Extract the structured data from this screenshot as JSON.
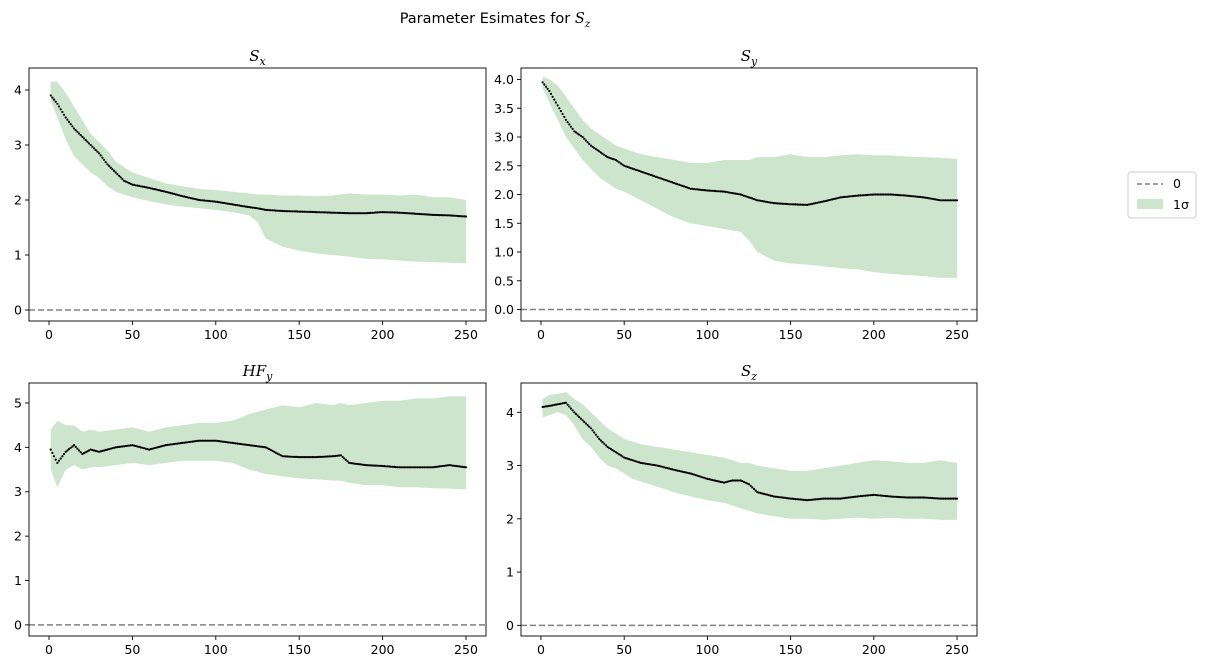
{
  "figure": {
    "suptitle_prefix": "Parameter Esimates for ",
    "suptitle_symbol": "S",
    "suptitle_sub": "z",
    "band_color": "#cde5cd",
    "dot_color": "#000000",
    "zero_line_color": "#808080"
  },
  "legend": {
    "items": [
      {
        "label": "0",
        "type": "dashed-line"
      },
      {
        "label": "1σ",
        "type": "patch"
      }
    ]
  },
  "chart_data": [
    {
      "type": "scatter",
      "title_symbol": "S",
      "title_sub": "x",
      "xlim": [
        -12,
        262
      ],
      "ylim": [
        -0.2,
        4.4
      ],
      "xticks": [
        0,
        50,
        100,
        150,
        200,
        250
      ],
      "xtick_labels": [
        "0",
        "50",
        "100",
        "150",
        "200",
        "250"
      ],
      "yticks": [
        0,
        1,
        2,
        3,
        4
      ],
      "ytick_labels": [
        "0",
        "1",
        "2",
        "3",
        "4"
      ],
      "zero_line": 0,
      "series": [
        {
          "x": [
            1,
            5,
            10,
            15,
            20,
            25,
            30,
            35,
            40,
            45,
            50,
            60,
            70,
            80,
            90,
            100,
            110,
            120,
            125,
            130,
            140,
            150,
            160,
            170,
            180,
            190,
            200,
            210,
            220,
            230,
            240,
            250
          ],
          "y": [
            3.9,
            3.75,
            3.5,
            3.3,
            3.15,
            3.0,
            2.85,
            2.65,
            2.5,
            2.35,
            2.28,
            2.22,
            2.15,
            2.07,
            2.0,
            1.97,
            1.92,
            1.87,
            1.85,
            1.82,
            1.8,
            1.79,
            1.78,
            1.77,
            1.76,
            1.76,
            1.78,
            1.77,
            1.75,
            1.73,
            1.72,
            1.7
          ],
          "lower": [
            3.8,
            3.5,
            3.1,
            2.8,
            2.65,
            2.5,
            2.4,
            2.25,
            2.15,
            2.1,
            2.05,
            1.98,
            1.92,
            1.88,
            1.85,
            1.82,
            1.78,
            1.72,
            1.6,
            1.3,
            1.15,
            1.08,
            1.03,
            1.0,
            0.97,
            0.93,
            0.92,
            0.9,
            0.88,
            0.87,
            0.86,
            0.85
          ],
          "upper": [
            4.15,
            4.15,
            3.95,
            3.7,
            3.45,
            3.2,
            3.05,
            2.9,
            2.7,
            2.6,
            2.5,
            2.4,
            2.3,
            2.25,
            2.2,
            2.18,
            2.15,
            2.12,
            2.1,
            2.1,
            2.08,
            2.08,
            2.07,
            2.08,
            2.12,
            2.1,
            2.1,
            2.08,
            2.1,
            2.05,
            2.05,
            2.0
          ]
        }
      ]
    },
    {
      "type": "scatter",
      "title_symbol": "S",
      "title_sub": "y",
      "xlim": [
        -12,
        262
      ],
      "ylim": [
        -0.2,
        4.2
      ],
      "xticks": [
        0,
        50,
        100,
        150,
        200,
        250
      ],
      "xtick_labels": [
        "0",
        "50",
        "100",
        "150",
        "200",
        "250"
      ],
      "yticks": [
        0,
        0.5,
        1,
        1.5,
        2,
        2.5,
        3,
        3.5,
        4
      ],
      "ytick_labels": [
        "0.0",
        "0.5",
        "1.0",
        "1.5",
        "2.0",
        "2.5",
        "3.0",
        "3.5",
        "4.0"
      ],
      "zero_line": 0,
      "series": [
        {
          "x": [
            1,
            5,
            10,
            15,
            20,
            25,
            30,
            35,
            40,
            45,
            50,
            60,
            70,
            80,
            90,
            100,
            110,
            120,
            125,
            130,
            140,
            150,
            160,
            170,
            180,
            190,
            200,
            210,
            220,
            230,
            240,
            250
          ],
          "y": [
            3.95,
            3.8,
            3.55,
            3.3,
            3.1,
            3.0,
            2.85,
            2.75,
            2.65,
            2.6,
            2.5,
            2.4,
            2.3,
            2.2,
            2.1,
            2.07,
            2.05,
            2.0,
            1.95,
            1.9,
            1.85,
            1.83,
            1.82,
            1.88,
            1.95,
            1.98,
            2.0,
            2.0,
            1.98,
            1.95,
            1.9,
            1.9
          ],
          "lower": [
            3.85,
            3.6,
            3.3,
            3.0,
            2.8,
            2.6,
            2.45,
            2.3,
            2.2,
            2.1,
            2.05,
            1.9,
            1.75,
            1.6,
            1.5,
            1.45,
            1.4,
            1.35,
            1.2,
            1.0,
            0.85,
            0.8,
            0.78,
            0.75,
            0.72,
            0.7,
            0.65,
            0.62,
            0.6,
            0.58,
            0.55,
            0.55
          ],
          "upper": [
            4.05,
            4.0,
            3.9,
            3.7,
            3.5,
            3.3,
            3.15,
            3.05,
            2.95,
            2.85,
            2.8,
            2.7,
            2.65,
            2.6,
            2.55,
            2.55,
            2.6,
            2.6,
            2.6,
            2.65,
            2.65,
            2.7,
            2.65,
            2.65,
            2.68,
            2.7,
            2.68,
            2.68,
            2.66,
            2.65,
            2.64,
            2.62
          ]
        }
      ]
    },
    {
      "type": "scatter",
      "title_symbol": "HF",
      "title_sub": "y",
      "xlim": [
        -12,
        262
      ],
      "ylim": [
        -0.25,
        5.45
      ],
      "xticks": [
        0,
        50,
        100,
        150,
        200,
        250
      ],
      "xtick_labels": [
        "0",
        "50",
        "100",
        "150",
        "200",
        "250"
      ],
      "yticks": [
        0,
        1,
        2,
        3,
        4,
        5
      ],
      "ytick_labels": [
        "0",
        "1",
        "2",
        "3",
        "4",
        "5"
      ],
      "zero_line": 0,
      "series": [
        {
          "x": [
            1,
            5,
            10,
            15,
            20,
            25,
            30,
            40,
            50,
            60,
            70,
            80,
            90,
            100,
            110,
            120,
            130,
            140,
            150,
            160,
            170,
            175,
            180,
            190,
            200,
            210,
            220,
            230,
            240,
            250
          ],
          "y": [
            3.95,
            3.65,
            3.9,
            4.05,
            3.85,
            3.95,
            3.9,
            4.0,
            4.05,
            3.95,
            4.05,
            4.1,
            4.15,
            4.15,
            4.1,
            4.05,
            4.0,
            3.8,
            3.78,
            3.78,
            3.8,
            3.82,
            3.65,
            3.6,
            3.58,
            3.55,
            3.55,
            3.55,
            3.6,
            3.55
          ],
          "lower": [
            3.5,
            3.1,
            3.5,
            3.6,
            3.5,
            3.55,
            3.55,
            3.6,
            3.65,
            3.6,
            3.65,
            3.7,
            3.7,
            3.7,
            3.65,
            3.5,
            3.4,
            3.35,
            3.3,
            3.28,
            3.25,
            3.25,
            3.2,
            3.15,
            3.15,
            3.1,
            3.1,
            3.08,
            3.07,
            3.05
          ],
          "upper": [
            4.4,
            4.6,
            4.5,
            4.5,
            4.35,
            4.4,
            4.35,
            4.4,
            4.45,
            4.35,
            4.45,
            4.5,
            4.55,
            4.55,
            4.6,
            4.75,
            4.85,
            4.95,
            4.9,
            5.0,
            4.95,
            5.0,
            4.95,
            5.0,
            5.05,
            5.05,
            5.1,
            5.1,
            5.15,
            5.15
          ]
        }
      ]
    },
    {
      "type": "scatter",
      "title_symbol": "S",
      "title_sub": "z",
      "xlim": [
        -12,
        262
      ],
      "ylim": [
        -0.2,
        4.55
      ],
      "xticks": [
        0,
        50,
        100,
        150,
        200,
        250
      ],
      "xtick_labels": [
        "0",
        "50",
        "100",
        "150",
        "200",
        "250"
      ],
      "yticks": [
        0,
        1,
        2,
        3,
        4
      ],
      "ytick_labels": [
        "0",
        "1",
        "2",
        "3",
        "4"
      ],
      "zero_line": 0,
      "series": [
        {
          "x": [
            1,
            5,
            10,
            15,
            20,
            25,
            30,
            35,
            40,
            45,
            50,
            55,
            60,
            70,
            80,
            90,
            100,
            110,
            115,
            120,
            125,
            130,
            140,
            150,
            160,
            170,
            180,
            190,
            200,
            210,
            220,
            230,
            240,
            250
          ],
          "y": [
            4.1,
            4.12,
            4.15,
            4.18,
            4.0,
            3.85,
            3.7,
            3.5,
            3.35,
            3.25,
            3.15,
            3.1,
            3.05,
            3.0,
            2.92,
            2.85,
            2.75,
            2.68,
            2.72,
            2.72,
            2.65,
            2.5,
            2.42,
            2.38,
            2.35,
            2.38,
            2.38,
            2.42,
            2.45,
            2.42,
            2.4,
            2.4,
            2.38,
            2.38
          ],
          "lower": [
            3.9,
            3.95,
            4.0,
            3.95,
            3.75,
            3.5,
            3.35,
            3.15,
            3.0,
            2.95,
            2.85,
            2.75,
            2.7,
            2.6,
            2.5,
            2.42,
            2.35,
            2.3,
            2.25,
            2.2,
            2.15,
            2.1,
            2.05,
            2.0,
            2.0,
            1.98,
            2.0,
            2.02,
            2.0,
            2.02,
            2.0,
            2.0,
            1.98,
            1.98
          ],
          "upper": [
            4.25,
            4.32,
            4.35,
            4.38,
            4.25,
            4.15,
            4.0,
            3.85,
            3.7,
            3.6,
            3.5,
            3.45,
            3.4,
            3.35,
            3.3,
            3.25,
            3.2,
            3.15,
            3.1,
            3.05,
            3.05,
            3.0,
            2.95,
            2.9,
            2.9,
            2.95,
            3.0,
            3.05,
            3.1,
            3.08,
            3.05,
            3.05,
            3.1,
            3.05
          ]
        }
      ]
    }
  ]
}
